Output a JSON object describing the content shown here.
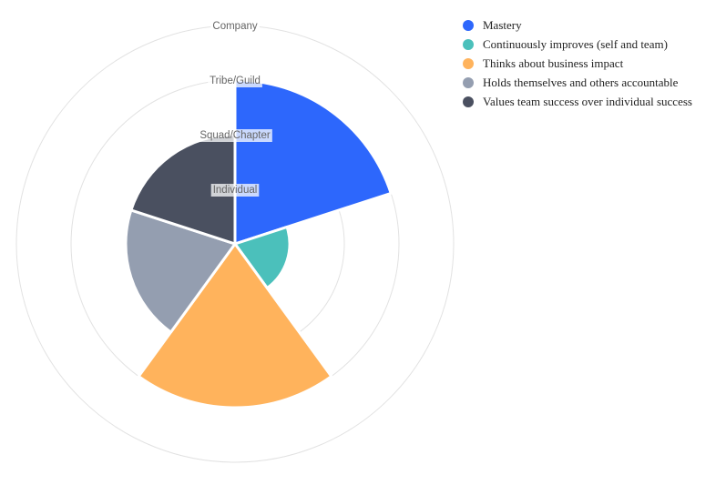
{
  "chart_data": {
    "type": "polarArea",
    "title": "",
    "scale": {
      "min": 0,
      "max": 4,
      "tick_labels": [
        "Individual",
        "Squad/Chapter",
        "Tribe/Guild",
        "Company"
      ]
    },
    "series": [
      {
        "name": "Mastery",
        "value": 3.0,
        "color": "#2d67fc"
      },
      {
        "name": "Continuously improves (self and team)",
        "value": 1.0,
        "color": "#4bc0bb"
      },
      {
        "name": "Thinks about business impact",
        "value": 3.0,
        "color": "#ffb35c"
      },
      {
        "name": "Holds themselves and others accountable",
        "value": 2.0,
        "color": "#949eb0"
      },
      {
        "name": "Values team success over individual success",
        "value": 2.0,
        "color": "#4a5060"
      }
    ],
    "grid": true,
    "legend_position": "right"
  }
}
